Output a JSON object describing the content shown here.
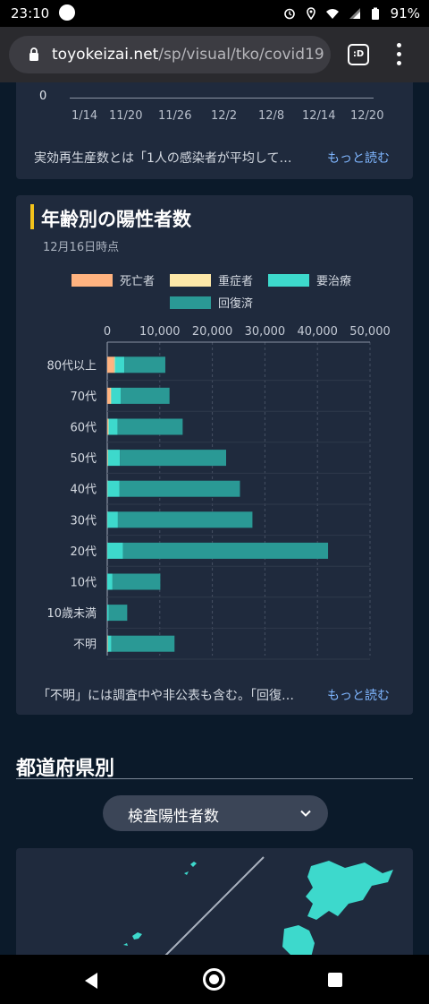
{
  "status_bar": {
    "time": "23:10",
    "battery": "91%"
  },
  "browser": {
    "url_host": "toyokeizai.net",
    "url_path": "/sp/visual/tko/covid19",
    "tab_label": ":D"
  },
  "reproduction_card": {
    "y_zero": "0",
    "x_ticks": [
      "1/14",
      "11/20",
      "11/26",
      "12/2",
      "12/8",
      "12/14",
      "12/20"
    ],
    "description": "実効再生産数とは「1人の感染者が平均して…",
    "more_label": "もっと読む"
  },
  "age_card": {
    "title": "年齢別の陽性者数",
    "as_of": "12月16日時点",
    "note": "「不明」には調査中や非公表も含む。「回復…",
    "more_label": "もっと読む"
  },
  "colors": {
    "dead": "#ffb380",
    "severe": "#fde8a8",
    "treat": "#3dd9cc",
    "recovered": "#2a9995"
  },
  "chart_data": {
    "type": "bar",
    "orientation": "horizontal",
    "stacked": true,
    "categories": [
      "80代以上",
      "70代",
      "60代",
      "50代",
      "40代",
      "30代",
      "20代",
      "10代",
      "10歳未満",
      "不明"
    ],
    "series": [
      {
        "name": "死亡者",
        "values": [
          1300,
          600,
          150,
          60,
          20,
          10,
          5,
          0,
          0,
          80
        ]
      },
      {
        "name": "重症者",
        "values": [
          150,
          150,
          100,
          60,
          30,
          15,
          10,
          0,
          0,
          20
        ]
      },
      {
        "name": "要治療",
        "values": [
          1800,
          1800,
          1700,
          2300,
          2300,
          2000,
          3000,
          1000,
          300,
          700
        ]
      },
      {
        "name": "回復済",
        "values": [
          7800,
          9300,
          12400,
          20200,
          22900,
          25600,
          39000,
          9100,
          3500,
          12000
        ]
      }
    ],
    "x_ticks": [
      "0",
      "10,000",
      "20,000",
      "30,000",
      "40,000",
      "50,000"
    ],
    "xlim": [
      0,
      50000
    ],
    "grid": true,
    "legend_position": "top"
  },
  "prefecture_section": {
    "title": "都道府県別",
    "select_value": "検査陽性者数"
  }
}
